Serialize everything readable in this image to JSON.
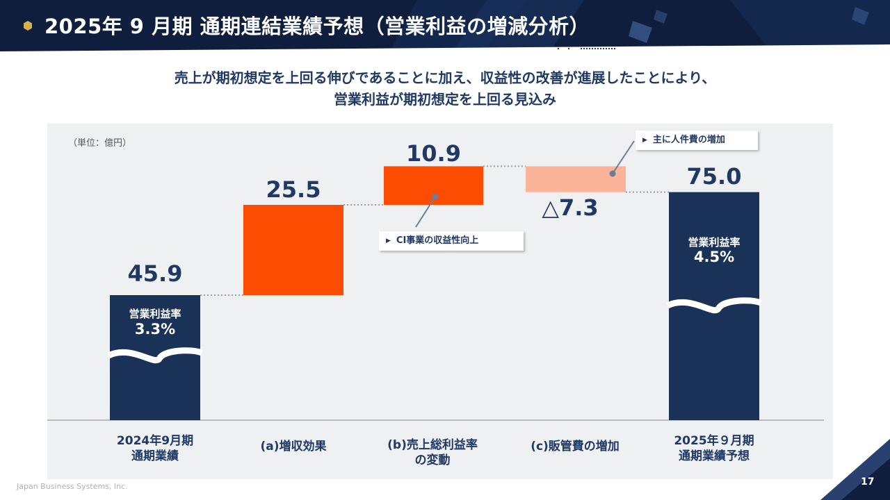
{
  "header": {
    "title": "2025年 9 月期  通期連結業績予想（営業利益の増減分析）"
  },
  "subtitle": {
    "line1": "売上が期初想定を上回る伸びであることに加え、収益性の改善が進展したことにより、",
    "line2": "営業利益が期初想定を上回る見込み"
  },
  "chart_data": {
    "type": "bar",
    "unit": "（単位：億円）",
    "categories": [
      [
        "2024年9月期",
        "通期業績"
      ],
      [
        "(a)増収効果"
      ],
      [
        "(b)売上総利益率",
        "の変動"
      ],
      [
        "(c)販管費の増加"
      ],
      [
        "2025年９月期",
        "通期業績予想"
      ]
    ],
    "values": [
      45.9,
      25.5,
      10.9,
      -7.3,
      75.0
    ],
    "value_labels": [
      "45.9",
      "25.5",
      "10.9",
      "△7.3",
      "75.0"
    ],
    "margin_labels": [
      {
        "title": "営業利益率",
        "value": "3.3%"
      },
      {
        "title": "営業利益率",
        "value": "4.5%"
      }
    ],
    "colors": {
      "total": "#1b3258",
      "increase": "#fc4c02",
      "decrease": "#fbb49a"
    }
  },
  "callouts": {
    "ci": "CI事業の収益性向上",
    "personnel": "主に人件費の増加"
  },
  "footer": {
    "company": "Japan Business Systems, Inc.",
    "page": "17"
  }
}
